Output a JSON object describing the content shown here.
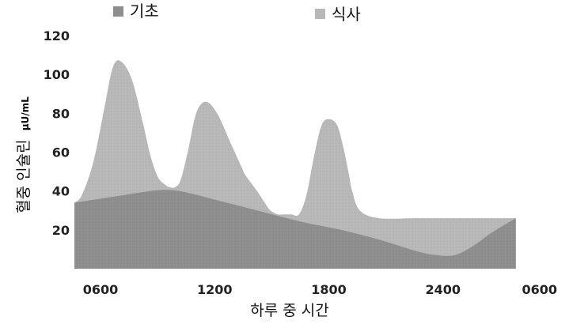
{
  "chart_data": {
    "type": "area",
    "title": "",
    "xlabel": "하루 중 시간",
    "ylabel": "혈중 인슐린",
    "ylabel_unit": "μU/mL",
    "xlim": [
      6,
      30
    ],
    "ylim": [
      0,
      120
    ],
    "x_ticks": [
      {
        "value": 6,
        "label": "0600"
      },
      {
        "value": 12,
        "label": "1200"
      },
      {
        "value": 18,
        "label": "1800"
      },
      {
        "value": 24,
        "label": "2400"
      },
      {
        "value": 30,
        "label": "0600"
      }
    ],
    "y_ticks": [
      20,
      40,
      60,
      80,
      100,
      120
    ],
    "grid": false,
    "legend_position": "top",
    "series": [
      {
        "name": "식사",
        "color": "#b8b8b8",
        "x": [
          6.0,
          6.4,
          7.0,
          7.6,
          8.0,
          8.4,
          9.0,
          9.6,
          10.0,
          10.4,
          10.8,
          11.0,
          11.3,
          11.6,
          12.0,
          12.4,
          12.9,
          13.5,
          14.2,
          14.8,
          15.0,
          15.6,
          16.0,
          16.3,
          16.7,
          17.0,
          17.4,
          17.8,
          18.2,
          18.6,
          19.0,
          19.4,
          19.8,
          20.1,
          20.4,
          20.6,
          21.0,
          22.0,
          24.0,
          26.0,
          28.0,
          29.2
        ],
        "y": [
          34,
          38,
          55,
          84,
          103,
          107,
          98,
          75,
          58,
          47,
          43,
          42,
          42,
          46,
          62,
          80,
          86,
          80,
          65,
          52,
          48,
          40,
          34,
          30,
          28,
          28,
          28,
          28,
          38,
          58,
          74,
          77,
          74,
          64,
          50,
          40,
          30,
          26,
          26,
          26,
          26,
          26
        ]
      },
      {
        "name": "기초",
        "color": "#8e8e8e",
        "x": [
          6.0,
          8.0,
          10.0,
          11.0,
          12.0,
          14.0,
          16.0,
          18.0,
          20.0,
          22.0,
          24.0,
          25.0,
          26.0,
          27.0,
          28.0,
          29.2
        ],
        "y": [
          34,
          37,
          40,
          40.5,
          39,
          34,
          29,
          24,
          20,
          15,
          9,
          7,
          7,
          12,
          19,
          26
        ]
      }
    ],
    "legend": [
      {
        "label": "기초",
        "color": "#8e8e8e"
      },
      {
        "label": "식사",
        "color": "#b8b8b8"
      }
    ]
  }
}
